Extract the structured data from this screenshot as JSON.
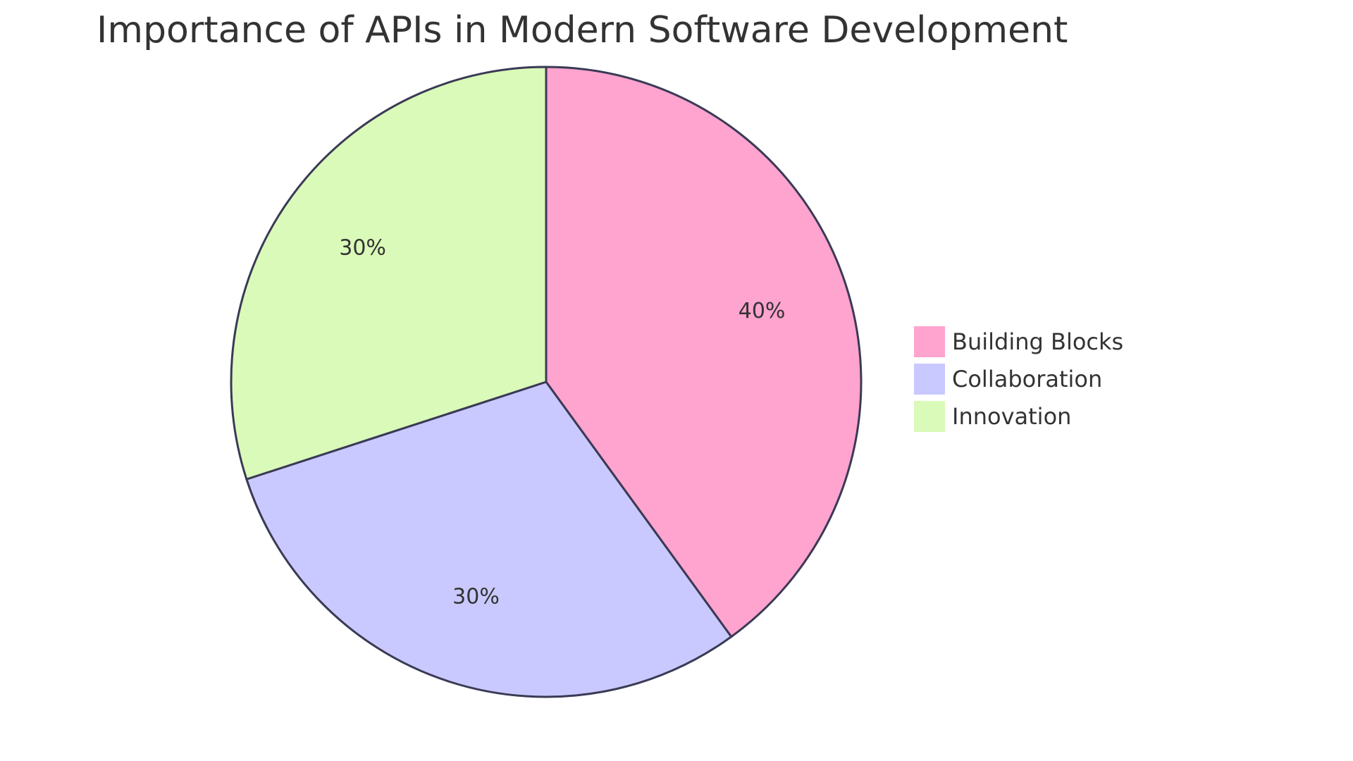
{
  "chart_data": {
    "type": "pie",
    "title": "Importance of APIs in Modern Software Development",
    "slices": [
      {
        "name": "Building Blocks",
        "value": 40,
        "label": "40%",
        "color": "#ffa3cf"
      },
      {
        "name": "Collaboration",
        "value": 30,
        "label": "30%",
        "color": "#c9c9ff"
      },
      {
        "name": "Innovation",
        "value": 30,
        "label": "30%",
        "color": "#dafab9"
      }
    ],
    "start_angle": "12 o'clock",
    "direction": "clockwise",
    "legend_position": "right"
  }
}
